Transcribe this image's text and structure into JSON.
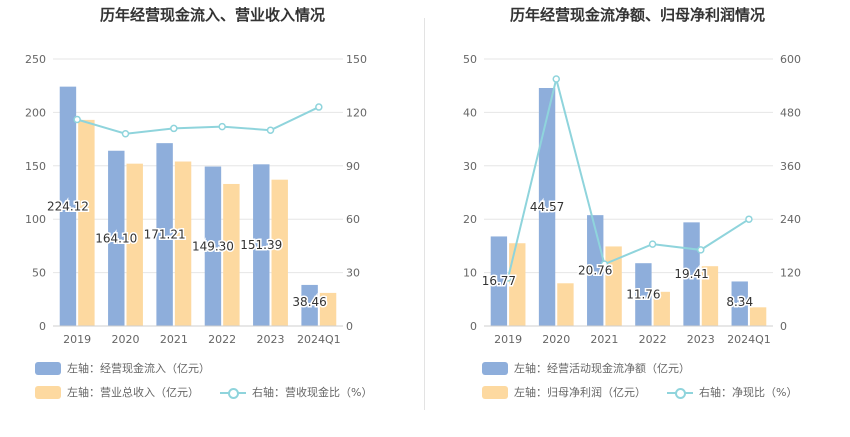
{
  "chart_data": [
    {
      "type": "bar",
      "title": "历年经营现金流入、营业收入情况",
      "categories": [
        "2019",
        "2020",
        "2021",
        "2022",
        "2023",
        "2024Q1"
      ],
      "y_left_ticks": [
        "0",
        "50",
        "100",
        "150",
        "200",
        "250"
      ],
      "y_right_ticks": [
        "0",
        "30",
        "60",
        "90",
        "120",
        "150"
      ],
      "ylim_left": [
        0,
        250
      ],
      "ylim_right": [
        0,
        150
      ],
      "series": [
        {
          "name": "左轴：经营现金流入（亿元）",
          "axis": "left",
          "kind": "bar",
          "color": "#8eaedb",
          "values": [
            224.12,
            164.1,
            171.21,
            149.3,
            151.39,
            38.46
          ],
          "labels": [
            "224.12",
            "164.10",
            "171.21",
            "149.30",
            "151.39",
            "38.46"
          ]
        },
        {
          "name": "左轴：营业总收入（亿元）",
          "axis": "left",
          "kind": "bar",
          "color": "#fdd9a0",
          "values": [
            193,
            152,
            154,
            133,
            137,
            31
          ]
        },
        {
          "name": "右轴：营收现金比（%）",
          "axis": "right",
          "kind": "line",
          "color": "#8fd4dc",
          "values": [
            116,
            108,
            111,
            112,
            110,
            123
          ]
        }
      ],
      "grid": true
    },
    {
      "type": "bar",
      "title": "历年经营现金流净额、归母净利润情况",
      "categories": [
        "2019",
        "2020",
        "2021",
        "2022",
        "2023",
        "2024Q1"
      ],
      "y_left_ticks": [
        "0",
        "10",
        "20",
        "30",
        "40",
        "50"
      ],
      "y_right_ticks": [
        "0",
        "120",
        "240",
        "360",
        "480",
        "600"
      ],
      "ylim_left": [
        0,
        50
      ],
      "ylim_right": [
        0,
        600
      ],
      "series": [
        {
          "name": "左轴：经营活动现金流净额（亿元）",
          "axis": "left",
          "kind": "bar",
          "color": "#8eaedb",
          "values": [
            16.77,
            44.57,
            20.76,
            11.76,
            19.41,
            8.34
          ],
          "labels": [
            "16.77",
            "44.57",
            "20.76",
            "11.76",
            "19.41",
            "8.34"
          ]
        },
        {
          "name": "左轴：归母净利润（亿元）",
          "axis": "left",
          "kind": "bar",
          "color": "#fdd9a0",
          "values": [
            15.5,
            8.0,
            14.9,
            6.4,
            11.2,
            3.5
          ]
        },
        {
          "name": "右轴：净现比（%）",
          "axis": "right",
          "kind": "line",
          "color": "#8fd4dc",
          "values": [
            108,
            555,
            139,
            184,
            171,
            240
          ]
        }
      ],
      "grid": true
    }
  ]
}
